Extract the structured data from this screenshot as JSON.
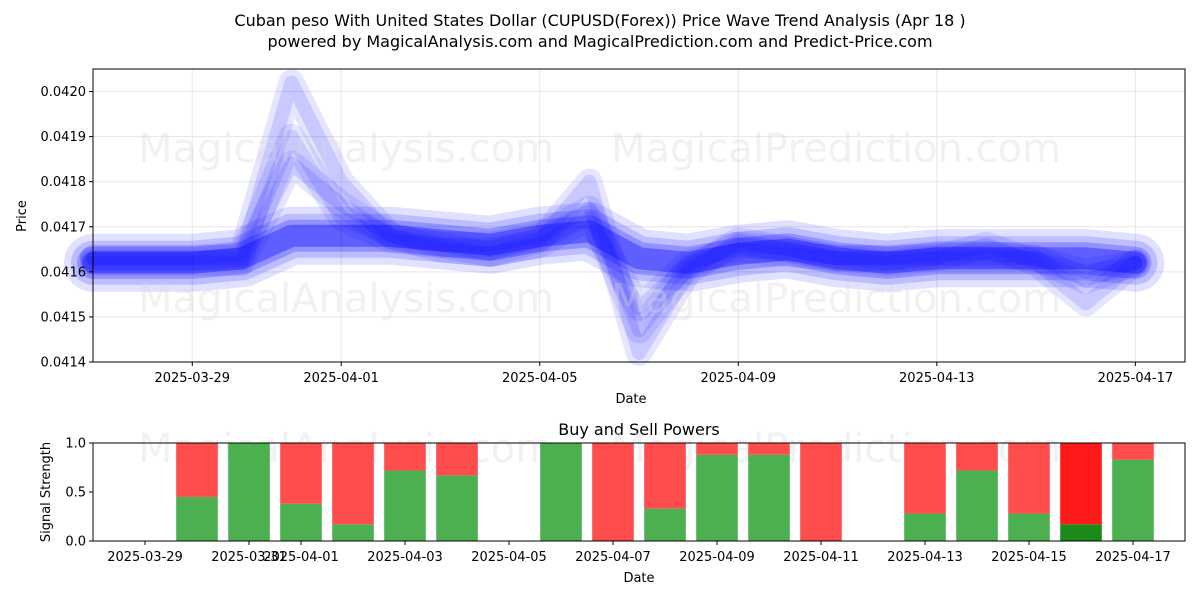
{
  "header": {
    "title": "Cuban peso With United States Dollar (CUPUSD(Forex)) Price Wave Trend Analysis (Apr 18 )",
    "subtitle": "powered by MagicalAnalysis.com and MagicalPrediction.com and Predict-Price.com"
  },
  "watermarks": [
    "MagicalAnalysis.com",
    "MagicalPrediction.com"
  ],
  "colors": {
    "wave": "#0000ff",
    "buy": "#4caf50",
    "sell": "#ff4d4d",
    "sell_strong": "#ff1a1a",
    "buy_strong": "#1a8a1a"
  },
  "chart_data": [
    {
      "type": "area",
      "ylabel": "Price",
      "xlabel": "Date",
      "ylim": [
        0.0414,
        0.04205
      ],
      "xlim": [
        "2025-03-27",
        "2025-04-18"
      ],
      "yticks": [
        "0.0414",
        "0.0415",
        "0.0416",
        "0.0417",
        "0.0418",
        "0.0419",
        "0.0420"
      ],
      "xticks": [
        "2025-03-29",
        "2025-04-01",
        "2025-04-05",
        "2025-04-09",
        "2025-04-13",
        "2025-04-17"
      ],
      "grid": true,
      "series": [
        {
          "x": [
            "2025-03-27",
            "2025-03-29",
            "2025-03-30",
            "2025-03-31",
            "2025-04-01",
            "2025-04-02",
            "2025-04-03",
            "2025-04-04",
            "2025-04-05",
            "2025-04-06",
            "2025-04-07",
            "2025-04-08",
            "2025-04-09",
            "2025-04-10",
            "2025-04-11",
            "2025-04-12",
            "2025-04-13",
            "2025-04-14",
            "2025-04-15",
            "2025-04-16",
            "2025-04-17"
          ],
          "y": [
            0.04162,
            0.04162,
            0.04163,
            0.04168,
            0.04168,
            0.04168,
            0.04167,
            0.04166,
            0.04168,
            0.04169,
            0.04163,
            0.04162,
            0.04164,
            0.04165,
            0.04163,
            0.04162,
            0.04163,
            0.04163,
            0.04163,
            0.04163,
            0.04162
          ]
        },
        {
          "x": [
            "2025-03-27",
            "2025-03-29",
            "2025-03-30",
            "2025-03-31",
            "2025-04-01",
            "2025-04-02",
            "2025-04-03",
            "2025-04-04",
            "2025-04-05",
            "2025-04-06",
            "2025-04-07",
            "2025-04-08",
            "2025-04-09",
            "2025-04-10",
            "2025-04-11",
            "2025-04-12",
            "2025-04-13",
            "2025-04-14",
            "2025-04-15",
            "2025-04-16",
            "2025-04-17"
          ],
          "y": [
            0.04163,
            0.04163,
            0.04164,
            0.04202,
            0.0418,
            0.04168,
            0.04166,
            0.04164,
            0.04167,
            0.0418,
            0.04142,
            0.0416,
            0.04167,
            0.04165,
            0.04163,
            0.04162,
            0.04163,
            0.04166,
            0.04162,
            0.04153,
            0.04162
          ]
        },
        {
          "x": [
            "2025-03-27",
            "2025-03-29",
            "2025-03-30",
            "2025-03-31",
            "2025-04-01",
            "2025-04-02",
            "2025-04-03",
            "2025-04-04",
            "2025-04-05",
            "2025-04-06",
            "2025-04-07",
            "2025-04-08",
            "2025-04-09",
            "2025-04-10",
            "2025-04-11",
            "2025-04-12",
            "2025-04-13",
            "2025-04-14",
            "2025-04-15",
            "2025-04-16",
            "2025-04-17"
          ],
          "y": [
            0.04163,
            0.04163,
            0.04163,
            0.0419,
            0.04172,
            0.04167,
            0.04166,
            0.04166,
            0.04168,
            0.04174,
            0.04147,
            0.04161,
            0.04166,
            0.04165,
            0.04163,
            0.04163,
            0.04164,
            0.04164,
            0.04163,
            0.04158,
            0.04162
          ]
        },
        {
          "x": [
            "2025-03-27",
            "2025-03-29",
            "2025-03-30",
            "2025-03-31",
            "2025-04-01",
            "2025-04-02",
            "2025-04-03",
            "2025-04-04",
            "2025-04-05",
            "2025-04-06",
            "2025-04-07",
            "2025-04-08",
            "2025-04-09",
            "2025-04-10",
            "2025-04-11",
            "2025-04-12",
            "2025-04-13",
            "2025-04-14",
            "2025-04-15",
            "2025-04-16",
            "2025-04-17"
          ],
          "y": [
            0.04162,
            0.04162,
            0.04162,
            0.04184,
            0.04175,
            0.04168,
            0.04165,
            0.04164,
            0.04166,
            0.04172,
            0.04152,
            0.04162,
            0.04165,
            0.04164,
            0.04163,
            0.04163,
            0.04163,
            0.04163,
            0.04163,
            0.0416,
            0.04162
          ]
        }
      ]
    },
    {
      "type": "bar",
      "title": "Buy and Sell Powers",
      "ylabel": "Signal Strength",
      "xlabel": "Date",
      "ylim": [
        0,
        1.0
      ],
      "yticks": [
        "0.0",
        "0.5",
        "1.0"
      ],
      "xlim": [
        "2025-03-28",
        "2025-04-18"
      ],
      "xticks": [
        "2025-03-29",
        "2025-03-31",
        "2025-04-01",
        "2025-04-03",
        "2025-04-05",
        "2025-04-07",
        "2025-04-09",
        "2025-04-11",
        "2025-04-13",
        "2025-04-15",
        "2025-04-17"
      ],
      "categories": [
        "2025-03-30",
        "2025-03-31",
        "2025-04-01",
        "2025-04-02",
        "2025-04-03",
        "2025-04-04",
        "2025-04-06",
        "2025-04-07",
        "2025-04-08",
        "2025-04-09",
        "2025-04-10",
        "2025-04-11",
        "2025-04-13",
        "2025-04-14",
        "2025-04-15",
        "2025-04-16",
        "2025-04-17"
      ],
      "series": [
        {
          "values": [
            0.45,
            1.0,
            0.38,
            0.17,
            0.72,
            0.67,
            1.0,
            0.0,
            0.33,
            0.88,
            0.88,
            0.0,
            0.28,
            0.72,
            0.28,
            0.17,
            0.83
          ]
        },
        {
          "values": [
            0.55,
            0.0,
            0.62,
            0.83,
            0.28,
            0.33,
            0.0,
            1.0,
            0.67,
            0.12,
            0.12,
            1.0,
            0.72,
            0.28,
            0.72,
            0.83,
            0.17
          ]
        }
      ]
    }
  ]
}
